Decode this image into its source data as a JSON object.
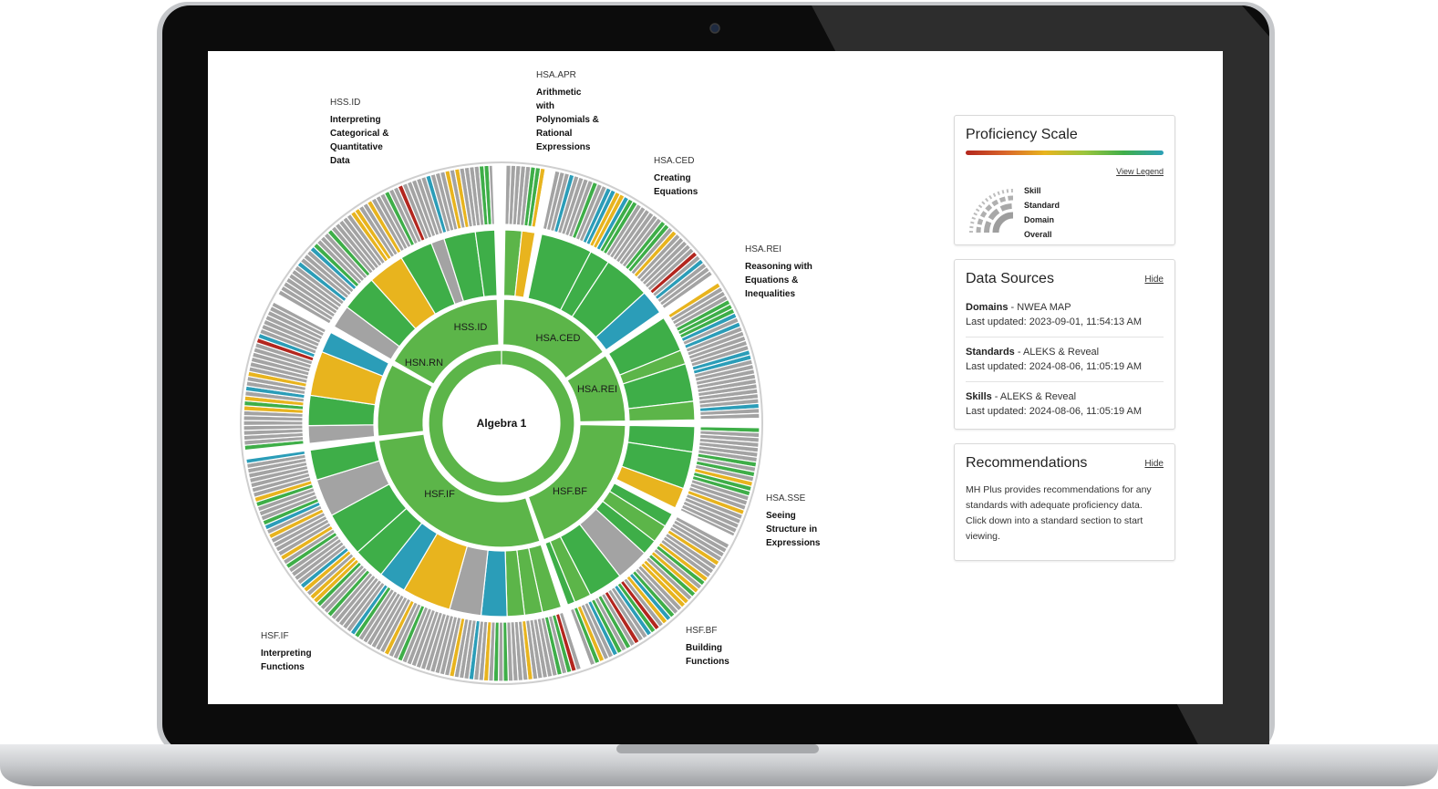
{
  "colors": {
    "green": "#3eae48",
    "green_light": "#5cb549",
    "blue": "#2b9db8",
    "gray": "#a3a3a3",
    "yellow": "#e8b41e",
    "red": "#b3261e"
  },
  "chart": {
    "center": "Algebra 1",
    "domains": [
      {
        "code": "HSS.ID",
        "name": [
          "Interpreting",
          "Categorical &",
          "Quantitative",
          "Data"
        ]
      },
      {
        "code": "HSA.APR",
        "name": [
          "Arithmetic",
          "with",
          "Polynomials &",
          "Rational",
          "Expressions"
        ]
      },
      {
        "code": "HSA.CED",
        "name": [
          "Creating",
          "Equations"
        ]
      },
      {
        "code": "HSA.REI",
        "name": [
          "Reasoning with",
          "Equations &",
          "Inequalities"
        ]
      },
      {
        "code": "HSA.SSE",
        "name": [
          "Seeing",
          "Structure in",
          "Expressions"
        ]
      },
      {
        "code": "HSF.BF",
        "name": [
          "Building",
          "Functions"
        ]
      },
      {
        "code": "HSF.IF",
        "name": [
          "Interpreting",
          "Functions"
        ]
      }
    ],
    "inner_labels": [
      "HSS.ID",
      "HSA.CED",
      "HSA.REI",
      "HSF.BF",
      "HSF.IF",
      "HSN.RN"
    ]
  },
  "proficiency": {
    "title": "Proficiency Scale",
    "view_legend": "View Legend",
    "levels": [
      "Skill",
      "Standard",
      "Domain",
      "Overall"
    ]
  },
  "sources": {
    "title": "Data Sources",
    "hide": "Hide",
    "items": [
      {
        "label": "Domains",
        "provider": " - NWEA MAP",
        "updated": "Last updated: 2023-09-01, 11:54:13 AM"
      },
      {
        "label": "Standards",
        "provider": " - ALEKS & Reveal",
        "updated": "Last updated: 2024-08-06, 11:05:19 AM"
      },
      {
        "label": "Skills",
        "provider": " - ALEKS & Reveal",
        "updated": "Last updated: 2024-08-06, 11:05:19 AM"
      }
    ]
  },
  "recommendations": {
    "title": "Recommendations",
    "hide": "Hide",
    "text": "MH Plus provides recommendations for any standards with adequate proficiency data. Click down into a standard section to start viewing."
  }
}
